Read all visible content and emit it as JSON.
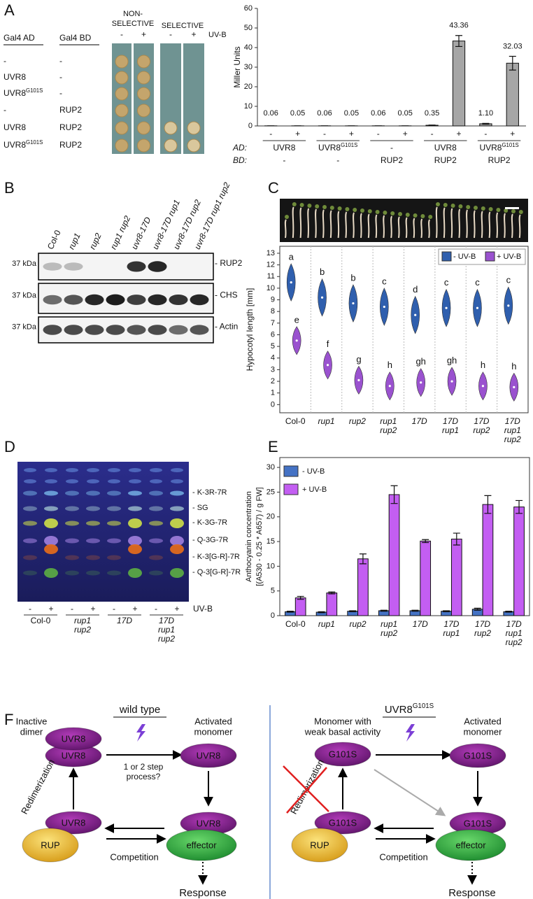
{
  "panel_labels": [
    "A",
    "B",
    "C",
    "D",
    "E",
    "F"
  ],
  "yeast": {
    "headers": {
      "ad": "Gal4 AD",
      "bd": "Gal4 BD",
      "nonselective": [
        "NON-",
        "SELECTIVE"
      ],
      "selective": "SELECTIVE",
      "uvb": "UV-B",
      "lanes": [
        "-",
        "+",
        "-",
        "+"
      ]
    },
    "rows": [
      {
        "ad": "-",
        "bd": "-"
      },
      {
        "ad": "UVR8",
        "bd": "-"
      },
      {
        "ad": {
          "text": "UVR8",
          "sup": "G101S"
        },
        "bd": "-"
      },
      {
        "ad": "-",
        "bd": "RUP2"
      },
      {
        "ad": "UVR8",
        "bd": "RUP2"
      },
      {
        "ad": {
          "text": "UVR8",
          "sup": "G101S"
        },
        "bd": "RUP2"
      }
    ]
  },
  "chart_data": [
    {
      "type": "bar",
      "ylabel": "Miller Units",
      "categories": [
        "-",
        "+",
        "-",
        "+",
        "-",
        "+",
        "-",
        "+",
        "-",
        "+"
      ],
      "values": [
        0.06,
        0.05,
        0.06,
        0.05,
        0.06,
        0.05,
        0.35,
        43.36,
        1.1,
        32.03
      ],
      "value_labels": [
        "0.06",
        "0.05",
        "0.06",
        "0.05",
        "0.06",
        "0.05",
        "0.35",
        "43.36",
        "1.10",
        "32.03"
      ],
      "errors": [
        0,
        0,
        0,
        0,
        0,
        0,
        0.1,
        2.8,
        0.2,
        3.5
      ],
      "color": "#a6a6a6",
      "ylim": [
        0,
        60
      ],
      "yticks": [
        0,
        10,
        20,
        30,
        40,
        50,
        60
      ],
      "group_rows": [
        {
          "name": "AD:",
          "labels": [
            "UVR8",
            {
              "text": "UVR8",
              "sup": "G101S"
            },
            "-",
            "UVR8",
            {
              "text": "UVR8",
              "sup": "G101S"
            }
          ]
        },
        {
          "name": "BD:",
          "labels": [
            "-",
            "-",
            "RUP2",
            "RUP2",
            "RUP2"
          ]
        }
      ]
    },
    {
      "type": "violin",
      "ylabel": "Hypocotyl length [mm]",
      "categories": [
        [
          "Col-0"
        ],
        [
          "rup1"
        ],
        [
          "rup2"
        ],
        [
          "rup1",
          "rup2"
        ],
        [
          "17D"
        ],
        [
          "17D",
          "rup1"
        ],
        [
          "17D",
          "rup2"
        ],
        [
          "17D",
          "rup1",
          "rup2"
        ]
      ],
      "series": [
        {
          "name": "- UV-B",
          "color": "#2f5fae",
          "values": [
            10.5,
            9.2,
            8.7,
            8.4,
            7.7,
            8.3,
            8.3,
            8.5
          ],
          "letters": [
            "a",
            "b",
            "b",
            "c",
            "d",
            "c",
            "c",
            "c"
          ]
        },
        {
          "name": "+ UV-B",
          "color": "#9a52cf",
          "values": [
            5.5,
            3.4,
            2.1,
            1.6,
            1.9,
            2.0,
            1.6,
            1.5
          ],
          "letters": [
            "e",
            "f",
            "g",
            "h",
            "gh",
            "gh",
            "h",
            "h"
          ]
        }
      ],
      "ylim": [
        -0.7,
        13.6
      ],
      "yticks": [
        0,
        1,
        2,
        3,
        4,
        5,
        6,
        7,
        8,
        9,
        10,
        11,
        12,
        13
      ],
      "legend": "upper right"
    },
    {
      "type": "bar",
      "ylabel": [
        "Anthocyanin concentration",
        "[(A530 - 0.25 * A657) / g  FW]"
      ],
      "categories": [
        [
          "Col-0"
        ],
        [
          "rup1"
        ],
        [
          "rup2"
        ],
        [
          "rup1",
          "rup2"
        ],
        [
          "17D"
        ],
        [
          "17D",
          "rup1"
        ],
        [
          "17D",
          "rup2"
        ],
        [
          "17D",
          "rup1",
          "rup2"
        ]
      ],
      "series": [
        {
          "name": "- UV-B",
          "color": "#4472c4",
          "values": [
            0.8,
            0.7,
            0.9,
            1.0,
            1.0,
            0.9,
            1.3,
            0.8
          ],
          "errors": [
            0.1,
            0.1,
            0.1,
            0.1,
            0.1,
            0.1,
            0.2,
            0.1
          ]
        },
        {
          "name": "+ UV-B",
          "color": "#c35ef2",
          "values": [
            3.6,
            4.6,
            11.5,
            24.5,
            15.1,
            15.5,
            22.5,
            22.0
          ],
          "errors": [
            0.3,
            0.2,
            1.0,
            1.8,
            0.3,
            1.2,
            1.8,
            1.3
          ]
        }
      ],
      "ylim": [
        0,
        32
      ],
      "yticks": [
        0,
        5,
        10,
        15,
        20,
        25,
        30
      ],
      "legend": "upper left"
    }
  ],
  "blot": {
    "lanes": [
      "Col-0",
      "rup1",
      "rup2",
      "rup1 rup2",
      "uvr8-17D",
      "uvr8-17D rup1",
      "uvr8-17D rup2",
      "uvr8-17D rup1 rup2"
    ],
    "size_markers": [
      "37 kDa",
      "37 kDa",
      "37 kDa"
    ],
    "proteins": [
      "- RUP2",
      "- CHS",
      "- Actin"
    ]
  },
  "tlc": {
    "bands": [
      "- K-3R-7R",
      "- SG",
      "- K-3G-7R",
      "- Q-3G-7R",
      "- K-3[G-R]-7R",
      "- Q-3[G-R]-7R"
    ],
    "uvb": "UV-B",
    "lanes": [
      "-",
      "+",
      "-",
      "+",
      "-",
      "+",
      "-",
      "+"
    ],
    "groups": [
      [
        "Col-0"
      ],
      [
        "rup1",
        "rup2"
      ],
      [
        "17D"
      ],
      [
        "17D",
        "rup1",
        "rup2"
      ]
    ]
  },
  "model": {
    "wild_type": {
      "title": "wild type",
      "state_label": [
        "Inactive",
        "dimer"
      ],
      "state": [
        "UVR8",
        "UVR8"
      ],
      "step": [
        "1 or 2 step",
        "process?"
      ],
      "active_label": [
        "Activated",
        "monomer"
      ],
      "active": "UVR8",
      "redimerization": "Redimerization",
      "rup_bound": "UVR8",
      "rup": "RUP",
      "effector_bound": "UVR8",
      "effector": "effector",
      "competition": "Competition",
      "response": "Response"
    },
    "mutant": {
      "title": {
        "text": "UVR8",
        "sup": "G101S"
      },
      "state_label": [
        "Monomer with",
        "weak basal activity"
      ],
      "state": "G101S",
      "active_label": [
        "Activated",
        "monomer"
      ],
      "active": "G101S",
      "redimerization": "Redimerization",
      "rup_bound": "G101S",
      "rup": "RUP",
      "effector_bound": "G101S",
      "effector": "effector",
      "competition": "Competition",
      "response": "Response"
    }
  }
}
